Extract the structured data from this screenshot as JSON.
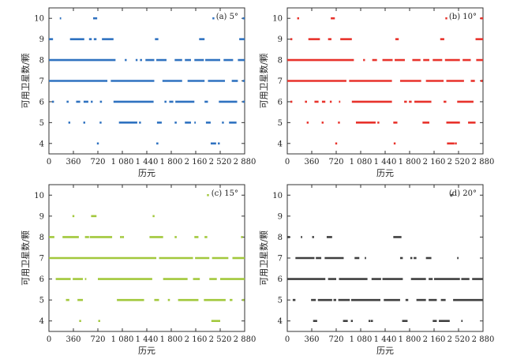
{
  "chart_data": [
    {
      "type": "scatter",
      "title": "(a) 5°",
      "xlabel": "历元",
      "ylabel": "可用卫星数/颗",
      "xlim": [
        0,
        2880
      ],
      "ylim": [
        3.5,
        10.5
      ],
      "xticks": [
        "0",
        "360",
        "720",
        "1 080",
        "1 440",
        "1 800",
        "2 160",
        "2 520",
        "2 880"
      ],
      "yticks": [
        "4",
        "5",
        "6",
        "7",
        "8",
        "9",
        "10"
      ],
      "color": "#2f72c0",
      "series": [
        {
          "y": 10,
          "ranges": [
            [
              160,
              180
            ],
            [
              650,
              710
            ],
            [
              2850,
              2880
            ]
          ],
          "points": [
            2420
          ]
        },
        {
          "y": 9,
          "ranges": [
            [
              0,
              60
            ],
            [
              310,
              520
            ],
            [
              590,
              630
            ],
            [
              660,
              700
            ],
            [
              780,
              950
            ],
            [
              1560,
              1610
            ],
            [
              2210,
              2290
            ],
            [
              2800,
              2880
            ]
          ],
          "points": []
        },
        {
          "y": 8,
          "ranges": [
            [
              0,
              980
            ],
            [
              1340,
              1370
            ],
            [
              1420,
              1550
            ],
            [
              1580,
              1730
            ],
            [
              1850,
              1960
            ],
            [
              2000,
              2090
            ],
            [
              2140,
              2280
            ],
            [
              2300,
              2520
            ],
            [
              2570,
              2710
            ],
            [
              2780,
              2880
            ]
          ],
          "points": [
            1130,
            1290
          ]
        },
        {
          "y": 7,
          "ranges": [
            [
              0,
              860
            ],
            [
              910,
              1550
            ],
            [
              1670,
              1960
            ],
            [
              2040,
              2290
            ],
            [
              2340,
              2590
            ],
            [
              2690,
              2780
            ],
            [
              2850,
              2880
            ]
          ],
          "points": []
        },
        {
          "y": 6,
          "ranges": [
            [
              260,
              290
            ],
            [
              400,
              460
            ],
            [
              510,
              580
            ],
            [
              750,
              780
            ],
            [
              950,
              1540
            ],
            [
              1700,
              1730
            ],
            [
              1770,
              1830
            ],
            [
              1860,
              2140
            ],
            [
              2290,
              2340
            ],
            [
              2500,
              2770
            ],
            [
              2850,
              2880
            ]
          ],
          "points": [
            60,
            630
          ]
        },
        {
          "y": 5,
          "ranges": [
            [
              1030,
              1300
            ],
            [
              1590,
              1660
            ],
            [
              1850,
              1880
            ],
            [
              2000,
              2090
            ],
            [
              2140,
              2160
            ],
            [
              2310,
              2380
            ],
            [
              2650,
              2760
            ]
          ],
          "points": [
            300,
            520,
            760,
            1340,
            2560
          ]
        },
        {
          "y": 4,
          "ranges": [
            [
              2380,
              2460
            ],
            [
              1580,
              1610
            ]
          ],
          "points": [
            720,
            2500
          ]
        }
      ]
    },
    {
      "type": "scatter",
      "title": "(b) 10°",
      "xlabel": "历元",
      "ylabel": "可用卫星数/颗",
      "xlim": [
        0,
        2880
      ],
      "ylim": [
        3.5,
        10.5
      ],
      "xticks": [
        "0",
        "360",
        "720",
        "1 080",
        "1 440",
        "1 800",
        "2 160",
        "2 520",
        "2 880"
      ],
      "yticks": [
        "4",
        "5",
        "6",
        "7",
        "8",
        "9",
        "10"
      ],
      "color": "#e8322b",
      "series": [
        {
          "y": 10,
          "ranges": [
            [
              640,
              700
            ],
            [
              2840,
              2880
            ]
          ],
          "points": [
            160,
            2340
          ]
        },
        {
          "y": 9,
          "ranges": [
            [
              310,
              480
            ],
            [
              600,
              650
            ],
            [
              780,
              950
            ],
            [
              1590,
              1640
            ],
            [
              2250,
              2310
            ],
            [
              2770,
              2880
            ]
          ],
          "points": [
            60
          ]
        },
        {
          "y": 8,
          "ranges": [
            [
              0,
              980
            ],
            [
              1250,
              1320
            ],
            [
              1400,
              1550
            ],
            [
              1580,
              1730
            ],
            [
              1840,
              1960
            ],
            [
              2000,
              2090
            ],
            [
              2140,
              2280
            ],
            [
              2320,
              2540
            ],
            [
              2580,
              2700
            ],
            [
              2780,
              2880
            ]
          ],
          "points": [
            1130
          ]
        },
        {
          "y": 7,
          "ranges": [
            [
              0,
              870
            ],
            [
              910,
              1540
            ],
            [
              1660,
              1970
            ],
            [
              2040,
              2300
            ],
            [
              2340,
              2600
            ],
            [
              2700,
              2760
            ]
          ],
          "points": [
            2860
          ]
        },
        {
          "y": 6,
          "ranges": [
            [
              260,
              290
            ],
            [
              400,
              460
            ],
            [
              510,
              560
            ],
            [
              760,
              780
            ],
            [
              950,
              1540
            ],
            [
              1720,
              1760
            ],
            [
              1790,
              1830
            ],
            [
              1870,
              2120
            ],
            [
              2300,
              2340
            ],
            [
              2500,
              2740
            ]
          ],
          "points": [
            60,
            640
          ]
        },
        {
          "y": 5,
          "ranges": [
            [
              1010,
              1300
            ],
            [
              1560,
              1620
            ],
            [
              1990,
              2090
            ],
            [
              2340,
              2540
            ],
            [
              2660,
              2770
            ]
          ],
          "points": [
            300,
            520,
            760,
            1340
          ]
        },
        {
          "y": 4,
          "ranges": [
            [
              2350,
              2460
            ]
          ],
          "points": [
            720,
            1580,
            2480
          ]
        }
      ]
    },
    {
      "type": "scatter",
      "title": "(c) 15°",
      "xlabel": "历元",
      "ylabel": "可用卫星数/颗",
      "xlim": [
        0,
        2880
      ],
      "ylim": [
        3.5,
        10.5
      ],
      "xticks": [
        "0",
        "360",
        "720",
        "1 080",
        "1 440",
        "1 800",
        "2 160",
        "2 520",
        "2 880"
      ],
      "yticks": [
        "4",
        "5",
        "6",
        "7",
        "8",
        "9",
        "10"
      ],
      "color": "#a2c83c",
      "series": [
        {
          "y": 10,
          "ranges": [],
          "points": [
            2340
          ]
        },
        {
          "y": 9,
          "ranges": [
            [
              620,
              700
            ]
          ],
          "points": [
            360,
            1540
          ]
        },
        {
          "y": 8,
          "ranges": [
            [
              0,
              80
            ],
            [
              200,
              440
            ],
            [
              530,
              590
            ],
            [
              600,
              930
            ],
            [
              1480,
              1680
            ],
            [
              1850,
              1880
            ],
            [
              2140,
              2200
            ],
            [
              2290,
              2330
            ]
          ],
          "points": [
            1060,
            1090,
            2840
          ]
        },
        {
          "y": 7,
          "ranges": [
            [
              0,
              1580
            ],
            [
              1620,
              2120
            ],
            [
              2150,
              2360
            ],
            [
              2400,
              2640
            ],
            [
              2700,
              2880
            ]
          ],
          "points": []
        },
        {
          "y": 6,
          "ranges": [
            [
              100,
              320
            ],
            [
              350,
              500
            ],
            [
              530,
              550
            ],
            [
              720,
              1520
            ],
            [
              1680,
              2040
            ],
            [
              2120,
              2220
            ],
            [
              2360,
              2470
            ],
            [
              2520,
              2880
            ]
          ],
          "points": []
        },
        {
          "y": 5,
          "ranges": [
            [
              250,
              300
            ],
            [
              420,
              500
            ],
            [
              1000,
              1400
            ],
            [
              1550,
              1620
            ],
            [
              1750,
              1780
            ],
            [
              1900,
              2200
            ],
            [
              2280,
              2600
            ],
            [
              2660,
              2700
            ]
          ],
          "points": [
            2860
          ]
        },
        {
          "y": 4,
          "ranges": [
            [
              2390,
              2520
            ]
          ],
          "points": [
            460,
            740
          ]
        }
      ]
    },
    {
      "type": "scatter",
      "title": "(d) 20°",
      "xlabel": "历元",
      "ylabel": "可用卫星数/颗",
      "xlim": [
        0,
        2880
      ],
      "ylim": [
        3.5,
        10.5
      ],
      "xticks": [
        "0",
        "360",
        "720",
        "1 080",
        "1 440",
        "1 800",
        "2 160",
        "2 520",
        "2 880"
      ],
      "yticks": [
        "4",
        "5",
        "6",
        "7",
        "8",
        "9",
        "10"
      ],
      "color": "#3f3f3f",
      "series": [
        {
          "y": 10,
          "ranges": [],
          "points": [
            2420
          ]
        },
        {
          "y": 8,
          "ranges": [
            [
              0,
              40
            ],
            [
              200,
              220
            ],
            [
              580,
              660
            ],
            [
              1560,
              1680
            ]
          ],
          "points": [
            380
          ]
        },
        {
          "y": 7,
          "ranges": [
            [
              120,
              400
            ],
            [
              420,
              500
            ],
            [
              550,
              830
            ],
            [
              990,
              1060
            ],
            [
              1140,
              1160
            ],
            [
              1660,
              1700
            ],
            [
              1810,
              1840
            ],
            [
              1860,
              1900
            ],
            [
              2040,
              2120
            ],
            [
              2500,
              2520
            ]
          ],
          "points": []
        },
        {
          "y": 6,
          "ranges": [
            [
              0,
              560
            ],
            [
              600,
              720
            ],
            [
              760,
              1180
            ],
            [
              1240,
              1380
            ],
            [
              1400,
              1700
            ],
            [
              1820,
              2040
            ],
            [
              2080,
              2140
            ],
            [
              2160,
              2540
            ],
            [
              2560,
              2680
            ],
            [
              2720,
              2880
            ]
          ],
          "points": []
        },
        {
          "y": 5,
          "ranges": [
            [
              80,
              120
            ],
            [
              350,
              420
            ],
            [
              450,
              660
            ],
            [
              680,
              720
            ],
            [
              750,
              920
            ],
            [
              940,
              1370
            ],
            [
              1420,
              1660
            ],
            [
              1740,
              1780
            ],
            [
              1900,
              2040
            ],
            [
              2080,
              2200
            ],
            [
              2260,
              2330
            ],
            [
              2440,
              2880
            ]
          ],
          "points": []
        },
        {
          "y": 4,
          "ranges": [
            [
              380,
              440
            ],
            [
              820,
              890
            ],
            [
              1230,
              1260
            ],
            [
              1690,
              1770
            ],
            [
              2140,
              2200
            ],
            [
              2230,
              2390
            ],
            [
              2560,
              2580
            ]
          ],
          "points": [
            950,
            1210
          ]
        }
      ]
    }
  ]
}
